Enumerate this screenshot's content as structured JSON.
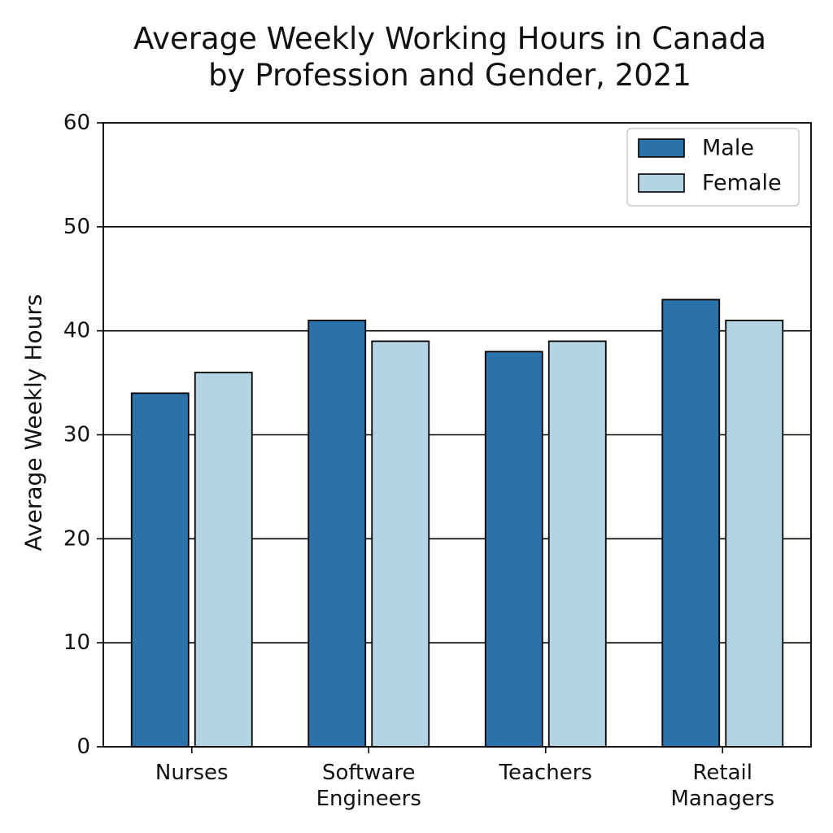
{
  "chart_data": {
    "type": "bar",
    "title_lines": [
      "Average Weekly Working Hours in Canada",
      "by Profession and Gender, 2021"
    ],
    "xlabel": "",
    "ylabel": "Average Weekly Hours",
    "categories": [
      [
        "Nurses"
      ],
      [
        "Software",
        "Engineers"
      ],
      [
        "Teachers"
      ],
      [
        "Retail",
        "Managers"
      ]
    ],
    "series": [
      {
        "name": "Male",
        "color": "#2b72ab",
        "values": [
          34,
          41,
          38,
          43
        ]
      },
      {
        "name": "Female",
        "color": "#b3d4e3",
        "values": [
          36,
          39,
          39,
          41
        ]
      }
    ],
    "ylim": [
      0,
      60
    ],
    "yticks": [
      0,
      10,
      20,
      30,
      40,
      50,
      60
    ],
    "grid": "horizontal",
    "legend_position": "top-right"
  }
}
